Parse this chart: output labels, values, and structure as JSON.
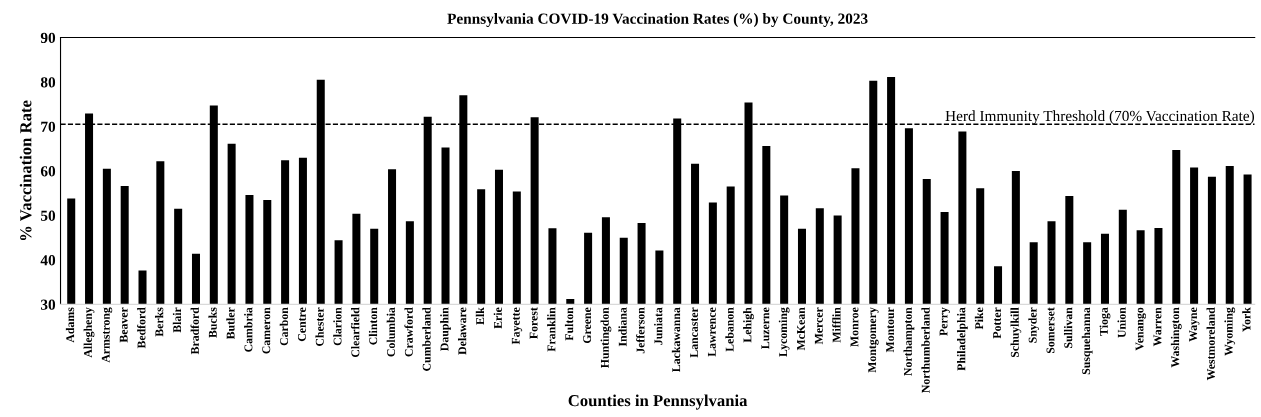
{
  "chart_data": {
    "type": "bar",
    "title": "Pennsylvania COVID-19 Vaccination Rates (%) by County, 2023",
    "xlabel": "Counties in Pennsylvania",
    "ylabel": "% Vaccination Rate",
    "categories": [
      "Adams",
      "Allegheny",
      "Armstrong",
      "Beaver",
      "Bedford",
      "Berks",
      "Blair",
      "Bradford",
      "Bucks",
      "Butler",
      "Cambria",
      "Cameron",
      "Carbon",
      "Centre",
      "Chester",
      "Clarion",
      "Clearfield",
      "Clinton",
      "Columbia",
      "Crawford",
      "Cumberland",
      "Dauphin",
      "Delaware",
      "Elk",
      "Erie",
      "Fayette",
      "Forest",
      "Franklin",
      "Fulton",
      "Greene",
      "Huntingdon",
      "Indiana",
      "Jefferson",
      "Juniata",
      "Lackawanna",
      "Lancaster",
      "Lawrence",
      "Lebanon",
      "Lehigh",
      "Luzerne",
      "Lycoming",
      "McKean",
      "Mercer",
      "Mifflin",
      "Monroe",
      "Montgomery",
      "Montour",
      "Northampton",
      "Northumberland",
      "Perry",
      "Philadelphia",
      "Pike",
      "Potter",
      "Schuylkill",
      "Snyder",
      "Somerset",
      "Sullivan",
      "Susquehanna",
      "Tioga",
      "Union",
      "Venango",
      "Warren",
      "Washington",
      "Wayne",
      "Westmoreland",
      "Wyoming",
      "York"
    ],
    "values": [
      53.8,
      72.9,
      60.5,
      56.6,
      37.6,
      62.2,
      51.5,
      41.4,
      74.7,
      66.1,
      54.6,
      53.5,
      62.4,
      63.0,
      80.5,
      44.4,
      50.4,
      47.0,
      60.4,
      48.7,
      72.2,
      65.3,
      77.0,
      55.9,
      60.3,
      55.4,
      72.1,
      47.1,
      31.2,
      46.1,
      49.6,
      45.0,
      48.3,
      42.1,
      71.8,
      61.6,
      52.9,
      56.5,
      75.4,
      65.6,
      54.5,
      47.0,
      51.6,
      50.0,
      60.6,
      80.3,
      81.1,
      69.6,
      58.2,
      50.8,
      68.9,
      56.1,
      38.6,
      60.0,
      44.0,
      48.7,
      54.4,
      44.0,
      45.9,
      51.3,
      46.7,
      47.2,
      64.7,
      60.8,
      58.7,
      61.1,
      59.2
    ],
    "color": "#000000",
    "ylim": [
      30,
      90
    ],
    "yticks": [
      30,
      40,
      50,
      60,
      70,
      80,
      90
    ],
    "ref_lines": [
      {
        "axis": "y",
        "value": 70.5,
        "label": "Herd Immunity Threshold (70% Vaccination Rate)",
        "color": "#000000",
        "line_style": "dashed"
      }
    ]
  }
}
